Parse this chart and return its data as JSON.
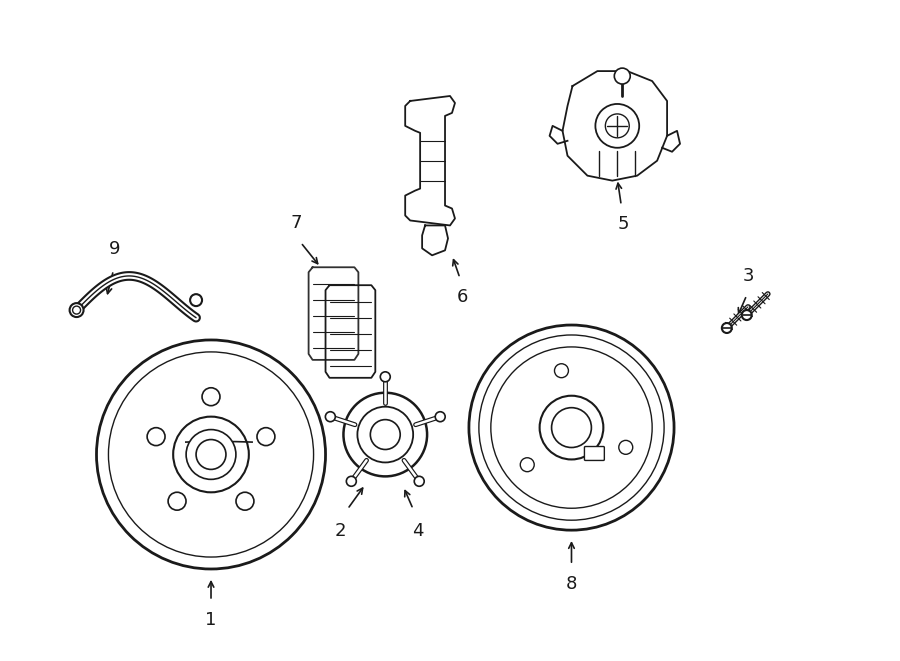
{
  "bg_color": "#ffffff",
  "line_color": "#1a1a1a",
  "lw": 1.3,
  "fig_w": 9.0,
  "fig_h": 6.61
}
